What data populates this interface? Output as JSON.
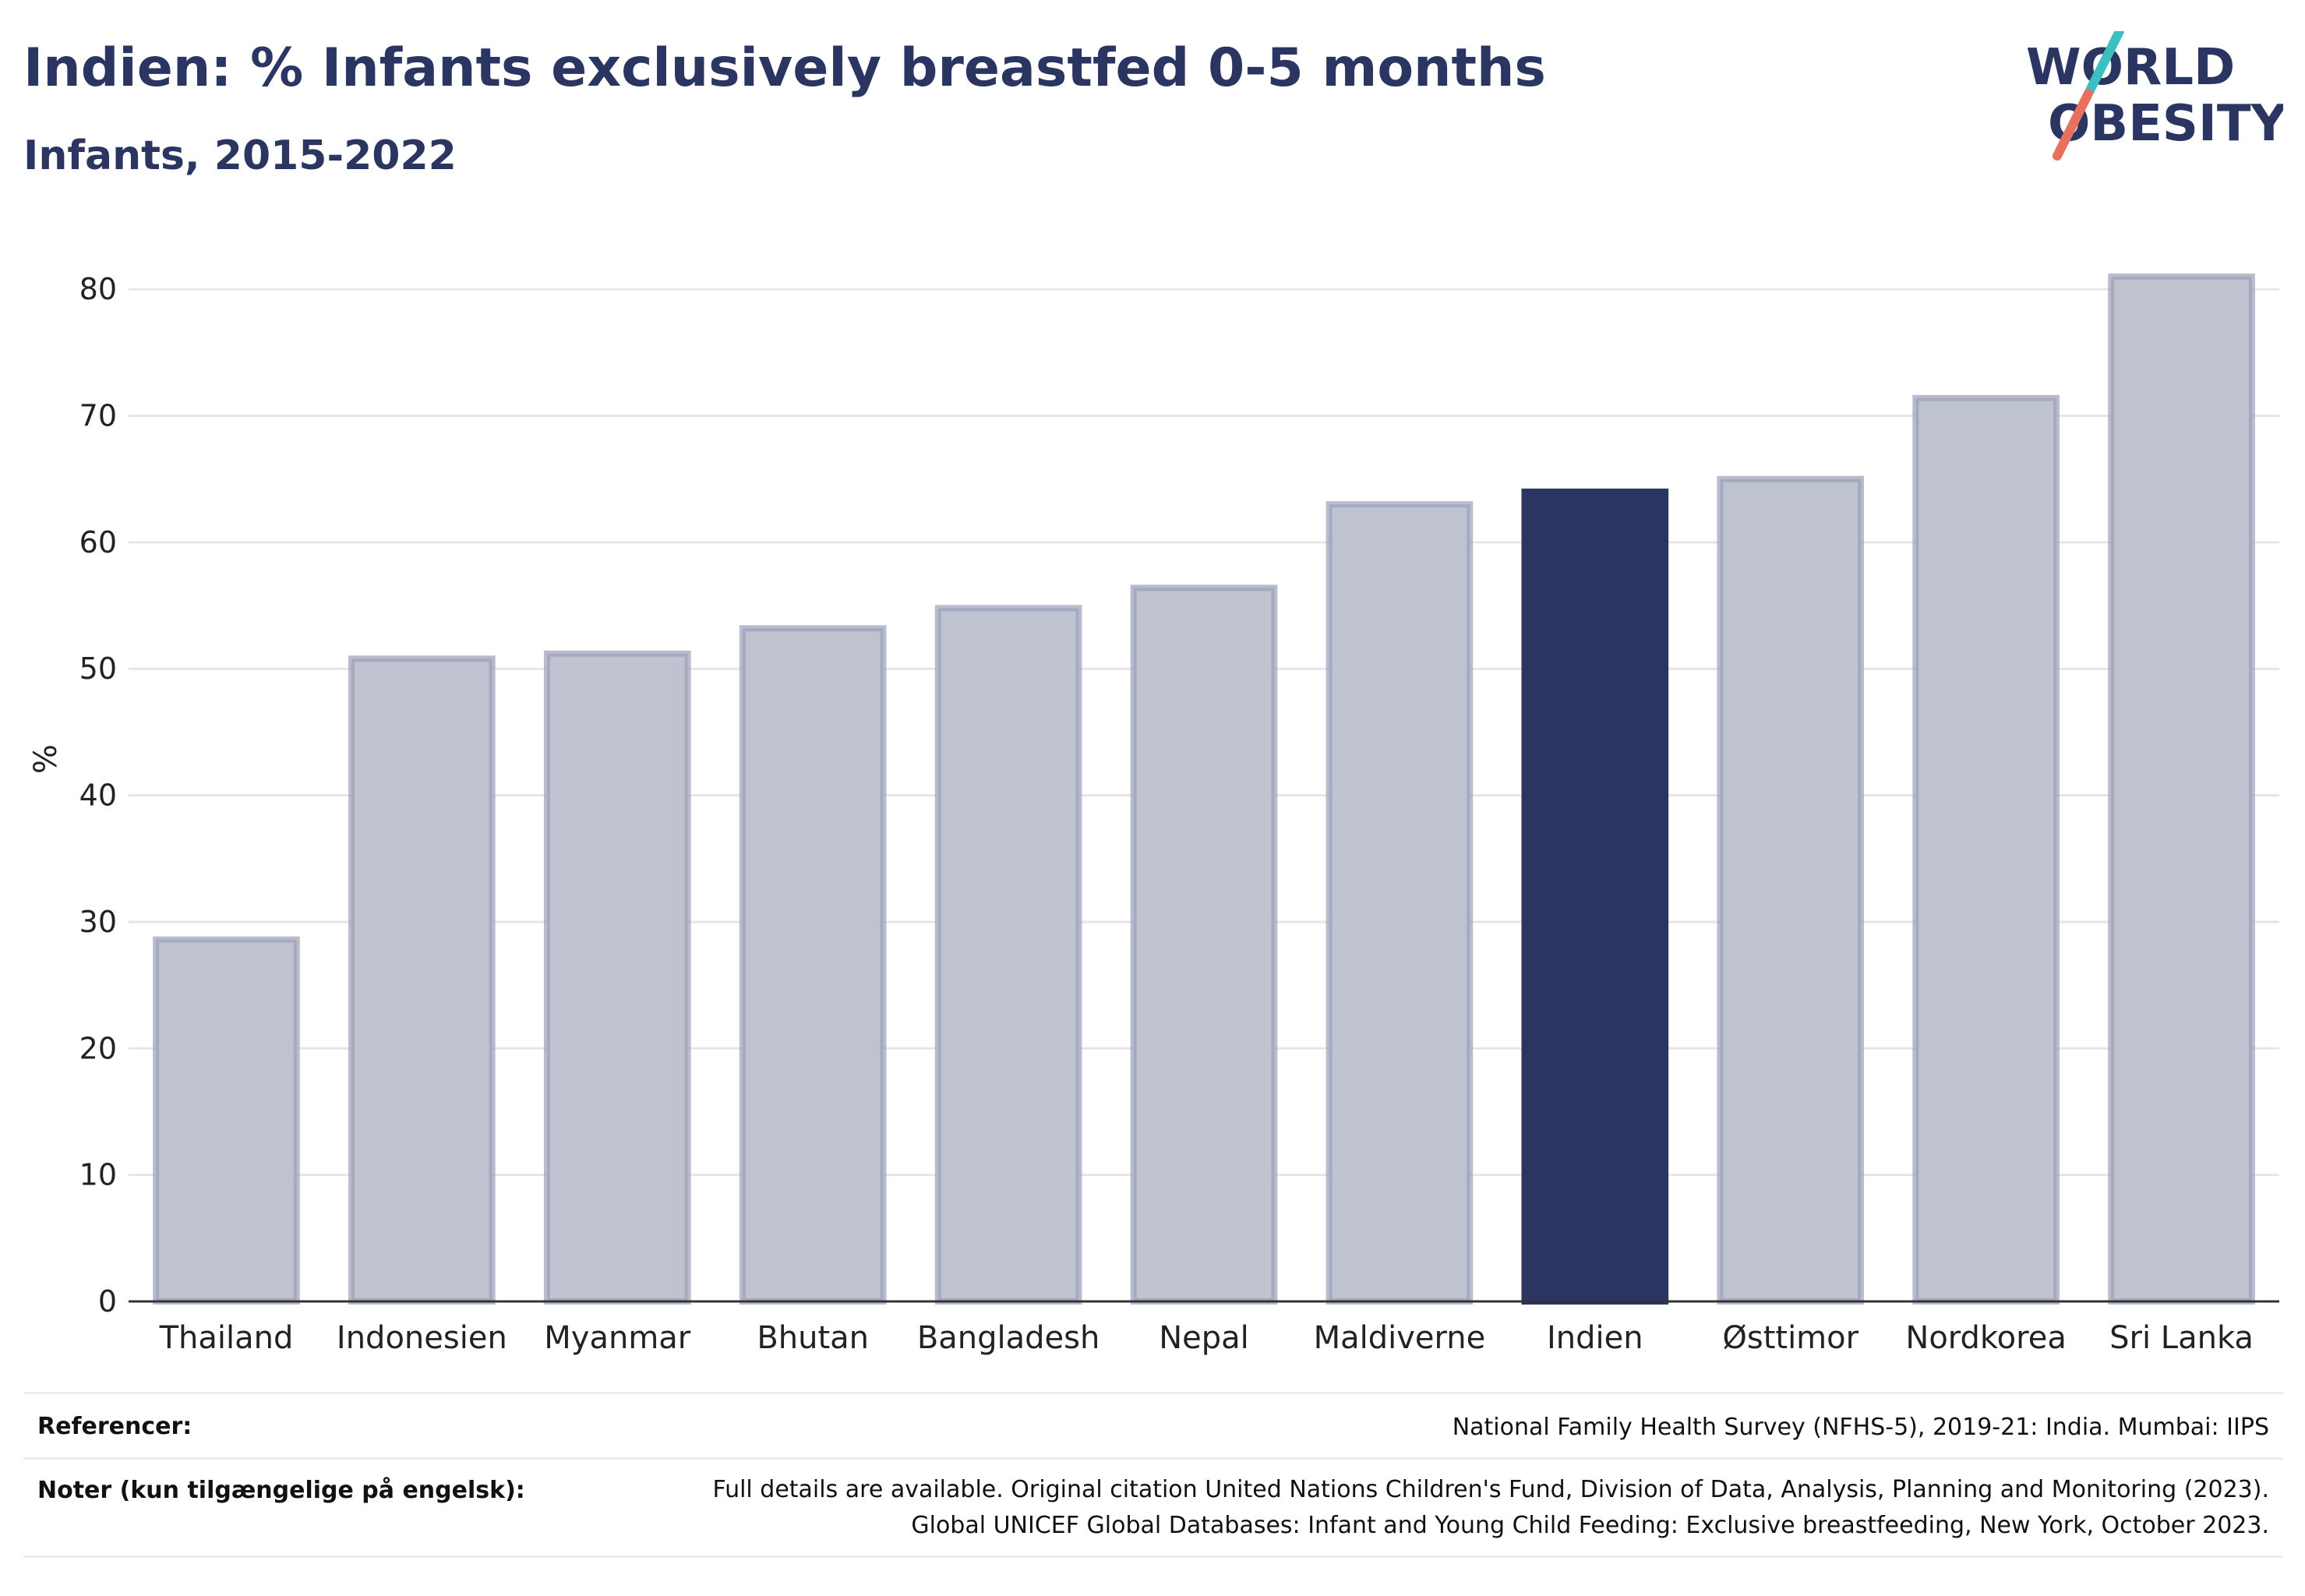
{
  "header": {
    "title": "Indien: % Infants exclusively breastfed 0-5 months",
    "subtitle": "Infants, 2015-2022"
  },
  "logo": {
    "line1": "WORLD",
    "line2": "OBESITY",
    "colors": {
      "text": "#2b3561",
      "slash_top": "#3bbfc0",
      "slash_bottom": "#e8705f"
    }
  },
  "chart_data": {
    "type": "bar",
    "categories": [
      "Thailand",
      "Indonesien",
      "Myanmar",
      "Bhutan",
      "Bangladesh",
      "Nepal",
      "Maldiverne",
      "Indien",
      "Østtimor",
      "Nordkorea",
      "Sri Lanka"
    ],
    "values": [
      28.6,
      50.8,
      51.2,
      53.2,
      54.8,
      56.4,
      63.0,
      64.0,
      65.0,
      71.4,
      81.0
    ],
    "highlight": "Indien",
    "ylabel": "%",
    "ylim": [
      0,
      85
    ],
    "yticks": [
      0,
      10,
      20,
      30,
      40,
      50,
      60,
      70,
      80
    ],
    "grid": true,
    "colors": {
      "bar": "#bfc2cf",
      "bar_edge": "#9aa0b8",
      "highlight": "#2b3561",
      "grid": "#e6e6ea",
      "axis": "#333333"
    }
  },
  "footer": {
    "references_label": "Referencer:",
    "references_text": "National Family Health Survey (NFHS-5), 2019-21: India. Mumbai: IIPS",
    "notes_label": "Noter (kun tilgængelige på engelsk):",
    "notes_lines": [
      "Full details are available. Original citation United Nations Children's Fund, Division of Data, Analysis, Planning and Monitoring (2023).",
      "Global UNICEF Global Databases: Infant and Young Child Feeding: Exclusive breastfeeding, New York, October 2023."
    ]
  }
}
